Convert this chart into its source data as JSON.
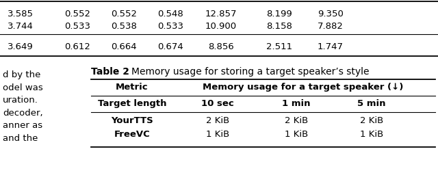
{
  "top_table": {
    "rows": [
      [
        "3.585",
        "0.552",
        "0.552",
        "0.548",
        "12.857",
        "8.199",
        "9.350"
      ],
      [
        "3.744",
        "0.533",
        "0.538",
        "0.533",
        "10.900",
        "8.158",
        "7.882"
      ],
      [
        "3.649",
        "0.612",
        "0.664",
        "0.674",
        "8.856",
        "2.511",
        "1.747"
      ]
    ]
  },
  "left_text": [
    "d by the",
    "odel was",
    "uration.",
    "decoder,",
    "anner as",
    "and the"
  ],
  "table2": {
    "title_bold": "Table 2",
    "title_rest": ": Memory usage for storing a target speaker’s style",
    "header1": [
      "Metric",
      "Memory usage for a target speaker (↓)"
    ],
    "header2": [
      "Target length",
      "10 sec",
      "1 min",
      "5 min"
    ],
    "rows": [
      [
        "YourTTS",
        "2 KiB",
        "2 KiB",
        "2 KiB"
      ],
      [
        "FreeVC",
        "1 KiB",
        "1 KiB",
        "1 KiB"
      ]
    ]
  },
  "bg_color": "#ffffff",
  "text_color": "#000000",
  "font_size": 9.5
}
